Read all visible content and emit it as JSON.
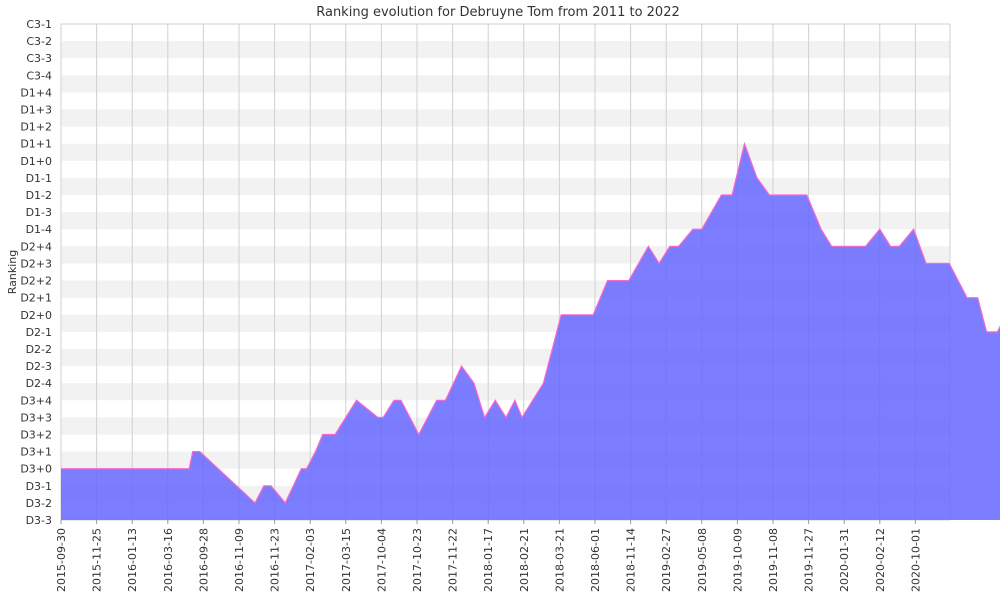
{
  "chart_data": {
    "type": "area",
    "title": "Ranking evolution for Debruyne Tom from 2011 to 2022",
    "ylabel": "Ranking",
    "xlabel": "",
    "y_categories": [
      "D3-3",
      "D3-2",
      "D3-1",
      "D3+0",
      "D3+1",
      "D3+2",
      "D3+3",
      "D3+4",
      "D2-4",
      "D2-3",
      "D2-2",
      "D2-1",
      "D2+0",
      "D2+1",
      "D2+2",
      "D2+3",
      "D2+4",
      "D1-4",
      "D1-3",
      "D1-2",
      "D1-1",
      "D1+0",
      "D1+1",
      "D1+2",
      "D1+3",
      "D1+4",
      "C3-4",
      "C3-3",
      "C3-2",
      "C3-1"
    ],
    "x_tick_labels": [
      "2015-09-30",
      "2015-11-25",
      "2016-01-13",
      "2016-03-16",
      "2016-09-28",
      "2016-11-09",
      "2016-11-23",
      "2017-02-03",
      "2017-03-15",
      "2017-10-04",
      "2017-10-23",
      "2017-11-22",
      "2018-01-17",
      "2018-02-21",
      "2018-03-21",
      "2018-06-01",
      "2018-11-14",
      "2019-02-27",
      "2019-05-08",
      "2019-10-09",
      "2019-11-08",
      "2019-11-27",
      "2020-01-31",
      "2020-02-12",
      "2020-10-01"
    ],
    "grid": true,
    "colors": {
      "fill": "#6666ff",
      "line": "#ff66cc",
      "band": "#f2f2f2",
      "grid": "#d0d0d0"
    },
    "series": [
      {
        "points": [
          [
            0,
            3
          ],
          [
            3,
            3
          ],
          [
            3.4,
            3
          ],
          [
            3.5,
            3
          ],
          [
            3.6,
            3
          ],
          [
            3.7,
            4
          ],
          [
            3.9,
            4
          ],
          [
            5.45,
            1
          ],
          [
            5.7,
            2
          ],
          [
            5.9,
            2
          ],
          [
            6.3,
            1
          ],
          [
            6.75,
            3
          ],
          [
            6.9,
            3
          ],
          [
            7.15,
            4
          ],
          [
            7.35,
            5
          ],
          [
            7.7,
            5
          ],
          [
            8.3,
            7
          ],
          [
            8.9,
            6
          ],
          [
            9.05,
            6
          ],
          [
            9.35,
            7
          ],
          [
            9.55,
            7
          ],
          [
            10.05,
            5
          ],
          [
            10.55,
            7
          ],
          [
            10.8,
            7
          ],
          [
            11.25,
            9
          ],
          [
            11.6,
            8
          ],
          [
            11.9,
            6
          ],
          [
            12.2,
            7
          ],
          [
            12.5,
            6
          ],
          [
            12.75,
            7
          ],
          [
            12.95,
            6
          ],
          [
            13.55,
            8
          ],
          [
            14.05,
            12
          ],
          [
            14.55,
            12
          ],
          [
            14.95,
            12
          ],
          [
            15.35,
            14
          ],
          [
            15.95,
            14
          ],
          [
            16.5,
            16
          ],
          [
            16.8,
            15
          ],
          [
            17.1,
            16
          ],
          [
            17.35,
            16
          ],
          [
            17.75,
            17
          ],
          [
            18.0,
            17
          ],
          [
            18.55,
            19
          ],
          [
            18.85,
            19
          ],
          [
            19.2,
            22
          ],
          [
            19.55,
            20
          ],
          [
            19.9,
            19
          ],
          [
            20.45,
            19
          ],
          [
            20.95,
            19
          ],
          [
            21.35,
            17
          ],
          [
            21.65,
            16
          ],
          [
            22.25,
            16
          ],
          [
            22.6,
            16
          ],
          [
            23.0,
            17
          ],
          [
            23.3,
            16
          ],
          [
            23.55,
            16
          ],
          [
            23.95,
            17
          ],
          [
            24.3,
            15
          ],
          [
            24.95,
            15
          ],
          [
            25.45,
            13
          ],
          [
            25.75,
            13
          ],
          [
            26.0,
            11
          ],
          [
            26.3,
            11
          ],
          [
            26.55,
            12
          ],
          [
            26.95,
            18
          ],
          [
            27.25,
            18
          ],
          [
            27.95,
            16
          ],
          [
            28.25,
            16
          ],
          [
            29.2,
            19
          ],
          [
            29.45,
            21
          ],
          [
            29.75,
            21
          ],
          [
            30.0,
            25
          ],
          [
            30.25,
            26
          ],
          [
            30.55,
            28
          ],
          [
            31.25,
            26
          ],
          [
            31.55,
            23
          ]
        ]
      }
    ]
  }
}
